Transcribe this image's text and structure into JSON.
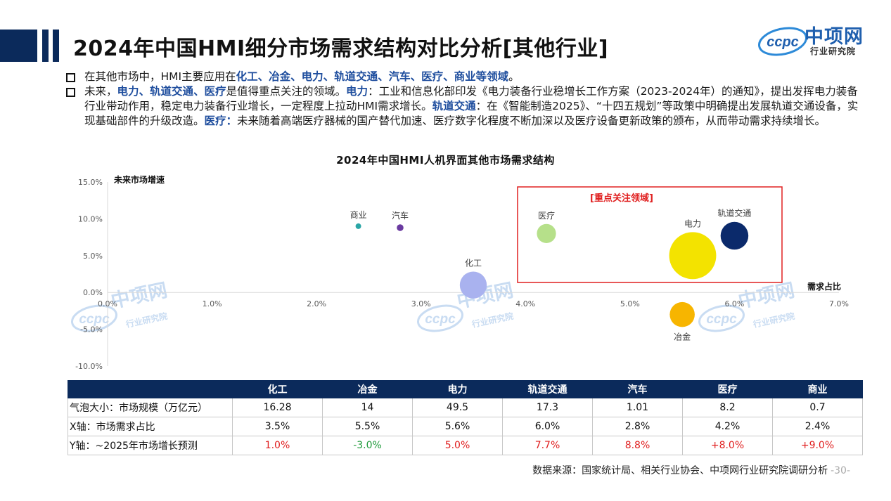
{
  "header": {
    "title": "2024年中国HMI细分市场需求结构对比分析[其他行业]",
    "logo_text": "中项网",
    "logo_sub": "行业研究院",
    "logo_mark": "ccpc"
  },
  "bullets": [
    {
      "segments": [
        {
          "text": "在其他市场中，HMI主要应用在",
          "hl": false
        },
        {
          "text": "化工、冶金、电力、轨道交通、汽车、医疗、商业等领域",
          "hl": true
        },
        {
          "text": "。",
          "hl": false
        }
      ]
    },
    {
      "segments": [
        {
          "text": "未来，",
          "hl": false
        },
        {
          "text": "电力、轨道交通、医疗",
          "hl": true
        },
        {
          "text": "是值得重点关注的领域。",
          "hl": false
        },
        {
          "text": "电力",
          "hl": true
        },
        {
          "text": "：工业和信息化部印发《电力装备行业稳增长工作方案（2023-2024年）的通知》，提出发挥电力装备行业带动作用，稳定电力装备行业增长，一定程度上拉动HMI需求增长。",
          "hl": false
        },
        {
          "text": "轨道交通",
          "hl": true
        },
        {
          "text": "：在《智能制造2025》、“十四五规划”等政策中明确提出发展轨道交通设备，实现基础部件的升级改造。",
          "hl": false
        },
        {
          "text": "医疗：",
          "hl": true
        },
        {
          "text": "未来随着高端医疗器械的国产替代加速、医疗数字化程度不断加深以及医疗设备更新政策的颁布，从而带动需求持续增长。",
          "hl": false
        }
      ]
    }
  ],
  "chart_data": {
    "type": "bubble",
    "title": "2024年中国HMI人机界面其他市场需求结构",
    "xlabel": "需求占比",
    "ylabel": "未来市场增速",
    "xlim": [
      0,
      7
    ],
    "ylim": [
      -10,
      15
    ],
    "x_ticks": [
      "0.0%",
      "1.0%",
      "2.0%",
      "3.0%",
      "4.0%",
      "5.0%",
      "6.0%",
      "7.0%"
    ],
    "y_ticks": [
      "15.0%",
      "10.0%",
      "5.0%",
      "0.0%",
      "-5.0%",
      "-10.0%"
    ],
    "grid": false,
    "highlight_label": "[重点关注领域]",
    "highlight_color": "#e02020",
    "points": [
      {
        "name": "化工",
        "x": 3.5,
        "y": 1.0,
        "size": 16.28,
        "color": "#a9b2ef"
      },
      {
        "name": "冶金",
        "x": 5.5,
        "y": -3.0,
        "size": 14,
        "color": "#f7b500"
      },
      {
        "name": "电力",
        "x": 5.6,
        "y": 5.0,
        "size": 49.5,
        "color": "#f3e300"
      },
      {
        "name": "轨道交通",
        "x": 6.0,
        "y": 7.7,
        "size": 17.3,
        "color": "#0b2a6b"
      },
      {
        "name": "汽车",
        "x": 2.8,
        "y": 8.8,
        "size": 1.01,
        "color": "#6a3aa0"
      },
      {
        "name": "医疗",
        "x": 4.2,
        "y": 8.0,
        "size": 8.2,
        "color": "#b6e08a"
      },
      {
        "name": "商业",
        "x": 2.4,
        "y": 9.0,
        "size": 0.7,
        "color": "#2aa6a6"
      }
    ]
  },
  "table": {
    "headers": [
      "",
      "化工",
      "冶金",
      "电力",
      "轨道交通",
      "汽车",
      "医疗",
      "商业"
    ],
    "rows": [
      {
        "label": "气泡大小：市场规模（万亿元）",
        "values": [
          "16.28",
          "14",
          "49.5",
          "17.3",
          "1.01",
          "8.2",
          "0.7"
        ],
        "tones": [
          "",
          "",
          "",
          "",
          "",
          "",
          ""
        ]
      },
      {
        "label": "X轴：市场需求占比",
        "values": [
          "3.5%",
          "5.5%",
          "5.6%",
          "6.0%",
          "2.8%",
          "4.2%",
          "2.4%"
        ],
        "tones": [
          "",
          "",
          "",
          "",
          "",
          "",
          ""
        ]
      },
      {
        "label": "Y轴：~2025年市场增长预测",
        "values": [
          "1.0%",
          "-3.0%",
          "5.0%",
          "7.7%",
          "8.8%",
          "+8.0%",
          "+9.0%"
        ],
        "tones": [
          "red",
          "grn",
          "red",
          "red",
          "red",
          "red",
          "red"
        ]
      }
    ]
  },
  "watermark": {
    "text": "中项网",
    "sub": "行业研究院",
    "mark": "ccpc"
  },
  "footer": {
    "source": "数据来源：国家统计局、相关行业协会、中项网行业研究院调研分析",
    "page": "-30-"
  }
}
